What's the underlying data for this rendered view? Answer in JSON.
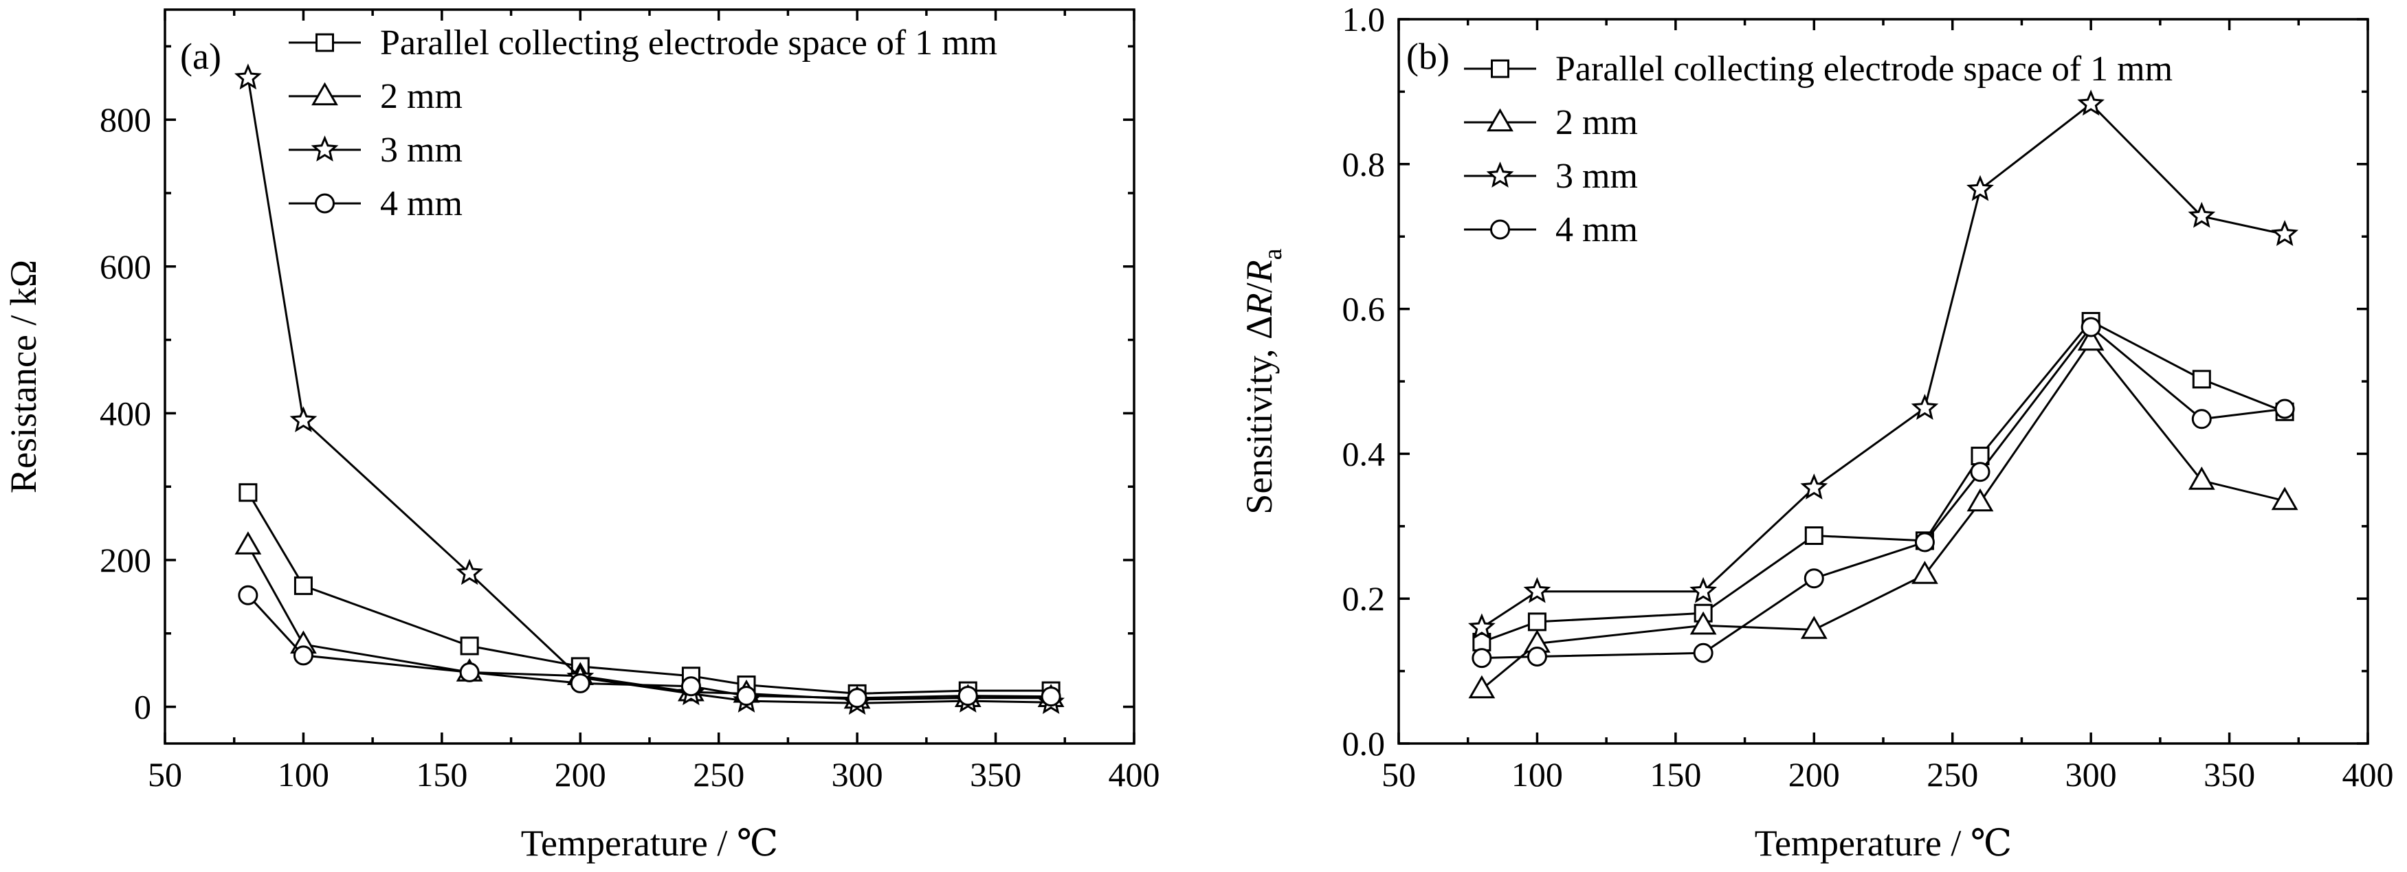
{
  "chart_data": [
    {
      "type": "line",
      "panel_label": "(a)",
      "xlabel": "Temperature / ℃",
      "ylabel": "Resistance / kΩ",
      "xlim": [
        50,
        400
      ],
      "ylim": [
        -50,
        950
      ],
      "x_ticks": [
        50,
        100,
        150,
        200,
        250,
        300,
        350,
        400
      ],
      "y_ticks": [
        0,
        200,
        400,
        600,
        800
      ],
      "x_tick_labels": [
        "50",
        "100",
        "150",
        "200",
        "250",
        "300",
        "350",
        "400"
      ],
      "y_tick_labels": [
        "0",
        "200",
        "400",
        "600",
        "800"
      ],
      "legend_position": "top-right",
      "grid": false,
      "x": [
        80,
        100,
        160,
        200,
        240,
        260,
        300,
        340,
        370
      ],
      "series": [
        {
          "name": "Parallel collecting electrode space of 1 mm",
          "marker": "square",
          "values": [
            292,
            165,
            83,
            55,
            42,
            30,
            18,
            22,
            22
          ]
        },
        {
          "name": "2 mm",
          "marker": "triangle",
          "values": [
            220,
            85,
            47,
            42,
            20,
            18,
            10,
            12,
            12
          ]
        },
        {
          "name": "3 mm",
          "marker": "star",
          "values": [
            857,
            390,
            182,
            40,
            18,
            8,
            5,
            8,
            6
          ]
        },
        {
          "name": "4 mm",
          "marker": "circle",
          "values": [
            152,
            70,
            47,
            32,
            28,
            15,
            12,
            15,
            14
          ]
        }
      ]
    },
    {
      "type": "line",
      "panel_label": "(b)",
      "xlabel": "Temperature / ℃",
      "ylabel": "Sensitivity, ΔR/Ra",
      "ylabel_parts": {
        "prefix": "Sensitivity, Δ",
        "var": "R",
        "slash": "/",
        "var2": "R",
        "sub": "a"
      },
      "xlim": [
        50,
        400
      ],
      "ylim": [
        0.0,
        1.0
      ],
      "x_ticks": [
        50,
        100,
        150,
        200,
        250,
        300,
        350,
        400
      ],
      "y_ticks": [
        0.0,
        0.2,
        0.4,
        0.6,
        0.8,
        1.0
      ],
      "x_tick_labels": [
        "50",
        "100",
        "150",
        "200",
        "250",
        "300",
        "350",
        "400"
      ],
      "y_tick_labels": [
        "0.0",
        "0.2",
        "0.4",
        "0.6",
        "0.8",
        "1.0"
      ],
      "legend_position": "top-left",
      "grid": false,
      "x": [
        80,
        100,
        160,
        200,
        240,
        260,
        300,
        340,
        370
      ],
      "series": [
        {
          "name": "Parallel collecting electrode space of 1 mm",
          "marker": "square",
          "values": [
            0.14,
            0.168,
            0.18,
            0.287,
            0.28,
            0.397,
            0.583,
            0.503,
            0.458
          ]
        },
        {
          "name": "2 mm",
          "marker": "triangle",
          "values": [
            0.075,
            0.138,
            0.163,
            0.157,
            0.233,
            0.333,
            0.555,
            0.363,
            0.335
          ]
        },
        {
          "name": "3 mm",
          "marker": "star",
          "values": [
            0.16,
            0.21,
            0.21,
            0.353,
            0.463,
            0.765,
            0.883,
            0.728,
            0.703
          ]
        },
        {
          "name": "4 mm",
          "marker": "circle",
          "values": [
            0.118,
            0.12,
            0.125,
            0.228,
            0.278,
            0.375,
            0.575,
            0.448,
            0.462
          ]
        }
      ]
    }
  ]
}
